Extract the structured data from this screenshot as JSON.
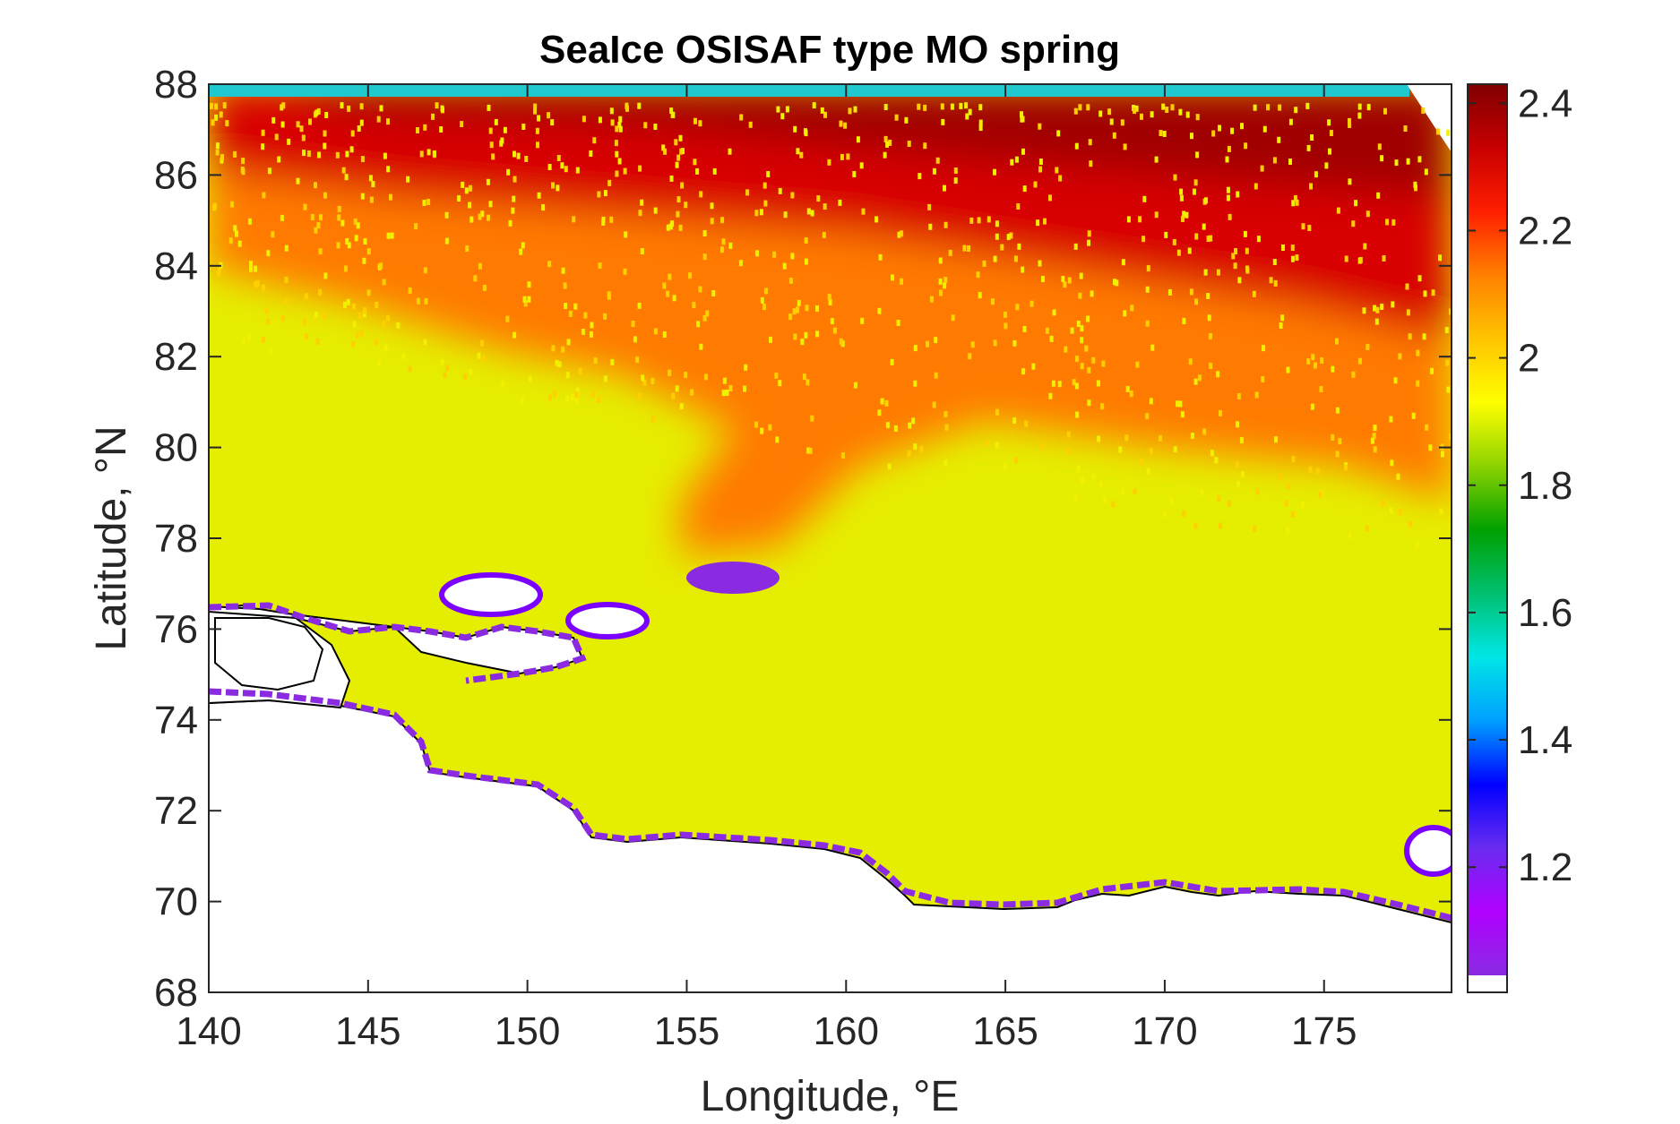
{
  "chart_data": {
    "type": "heatmap",
    "title": "SeaIce OSISAF type MO spring",
    "xlabel": "Longitude, °E",
    "ylabel": "Latitude, °N",
    "xlim": [
      140,
      179
    ],
    "ylim": [
      68,
      88
    ],
    "xticks": [
      "140",
      "145",
      "150",
      "155",
      "160",
      "165",
      "170",
      "175"
    ],
    "yticks": [
      "68",
      "70",
      "72",
      "74",
      "76",
      "78",
      "80",
      "82",
      "84",
      "86",
      "88"
    ],
    "colorbar": {
      "range": [
        1.03,
        2.43
      ],
      "ticks": [
        "1.2",
        "1.4",
        "1.6",
        "1.8",
        "2",
        "2.2",
        "2.4"
      ],
      "colors": [
        "#8a2be2",
        "#b000ff",
        "#6a2cf0",
        "#0000ff",
        "#00a0ff",
        "#00e6e6",
        "#00c070",
        "#00a000",
        "#8cd200",
        "#ffff00",
        "#ffc400",
        "#ff8000",
        "#ff1e00",
        "#c80000",
        "#800000"
      ],
      "nan_color": "#ffffff"
    },
    "field_description": {
      "high_north": 2.35,
      "mid_band": 2.2,
      "south_band": 2.02,
      "coastal_edge": 1.15
    }
  }
}
